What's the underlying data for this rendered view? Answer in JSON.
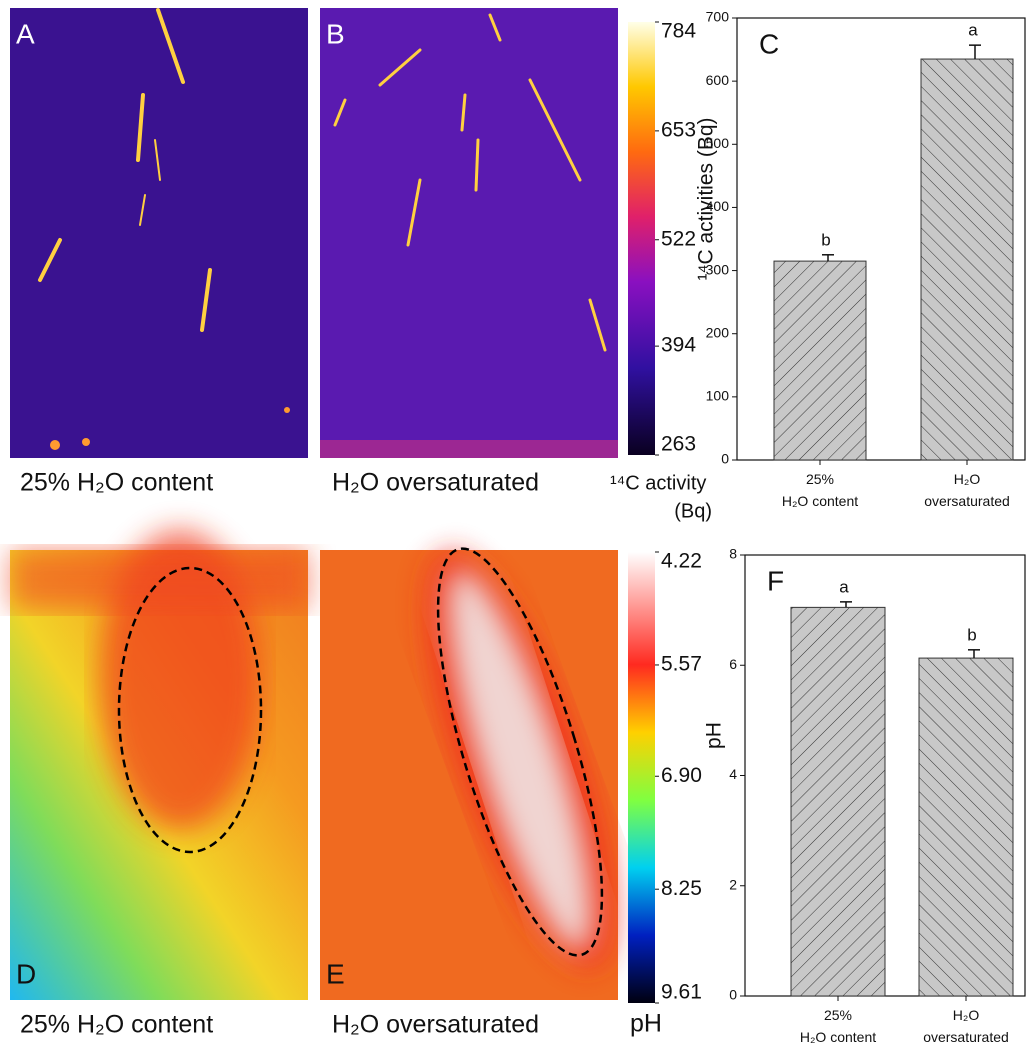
{
  "images": [
    {
      "letter": "A",
      "caption": "25% H₂O content"
    },
    {
      "letter": "B",
      "caption": "H₂O oversaturated"
    },
    {
      "letter": "D",
      "caption": "25% H₂O content"
    },
    {
      "letter": "E",
      "caption": "H₂O oversaturated"
    }
  ],
  "colorbars": [
    {
      "label": [
        "¹⁴C activity",
        "(Bq)"
      ],
      "clim": [
        263,
        784
      ],
      "ticks": [
        784,
        653,
        522,
        394,
        263
      ]
    },
    {
      "label": [
        "pH"
      ],
      "clim": [
        9.61,
        4.22
      ],
      "ticks": [
        4.22,
        5.57,
        {
          "value": 6.9,
          "label": "6.90"
        },
        8.25,
        9.61
      ]
    }
  ],
  "chart_data": [
    {
      "type": "bar",
      "panel": "C",
      "ylabel": "¹⁴C activities (Bq)",
      "categories": [
        "25% H₂O content",
        "H₂O oversaturated"
      ],
      "values": [
        315,
        635
      ],
      "errors": [
        10,
        22
      ],
      "annotations": [
        "b",
        "a"
      ],
      "color": "#c8c8c8",
      "ylim": [
        0,
        700
      ],
      "yticks": [
        0,
        100,
        200,
        300,
        400,
        500,
        600,
        700
      ]
    },
    {
      "type": "bar",
      "panel": "F",
      "ylabel": "pH",
      "categories": [
        "25% H₂O content",
        "H₂O oversaturated"
      ],
      "values": [
        7.05,
        6.13
      ],
      "errors": [
        0.1,
        0.15
      ],
      "annotations": [
        "a",
        "b"
      ],
      "color": "#c8c8c8",
      "ylim": [
        0,
        8
      ],
      "yticks": [
        0,
        2,
        4,
        6,
        8
      ]
    }
  ]
}
